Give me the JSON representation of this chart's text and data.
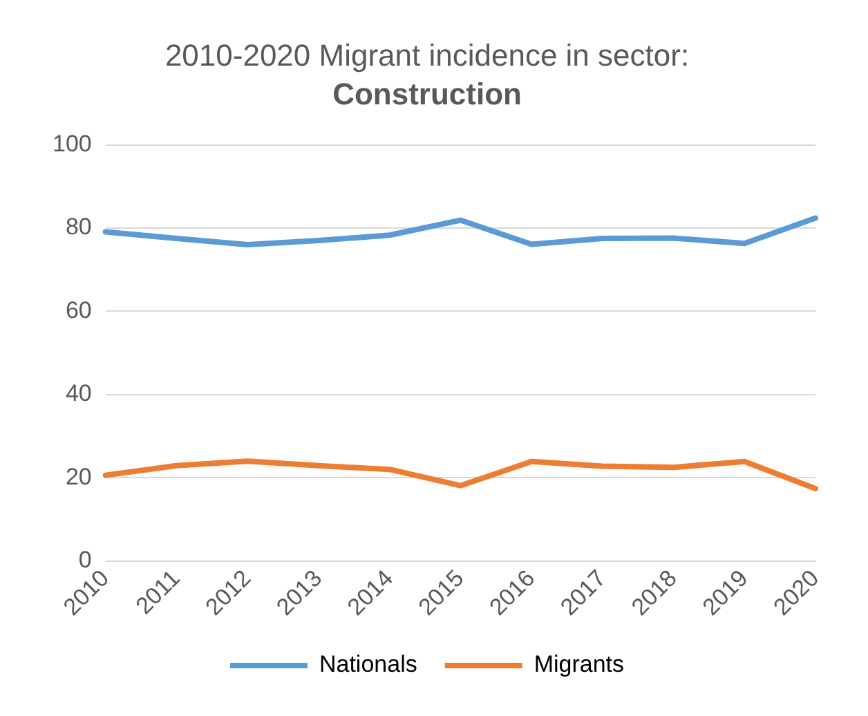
{
  "chart_data": {
    "type": "line",
    "title": "2010-2020 Migrant incidence in sector:",
    "subtitle": "Construction",
    "categories": [
      "2010",
      "2011",
      "2012",
      "2013",
      "2014",
      "2015",
      "2016",
      "2017",
      "2018",
      "2019",
      "2020"
    ],
    "series": [
      {
        "name": "Nationals",
        "color": "#5b9bd5",
        "values": [
          79.1,
          77.5,
          76.0,
          77.0,
          78.3,
          81.9,
          76.1,
          77.5,
          77.6,
          76.3,
          82.4
        ]
      },
      {
        "name": "Migrants",
        "color": "#ed7d31",
        "values": [
          20.6,
          22.9,
          24.0,
          22.9,
          22.0,
          18.1,
          23.9,
          22.8,
          22.5,
          23.9,
          17.4
        ]
      }
    ],
    "ylim": [
      0,
      100
    ],
    "yticks": [
      0,
      20,
      40,
      60,
      80,
      100
    ],
    "grid": "y",
    "legend": "bottom",
    "marker": "none",
    "line_style": "solid"
  }
}
